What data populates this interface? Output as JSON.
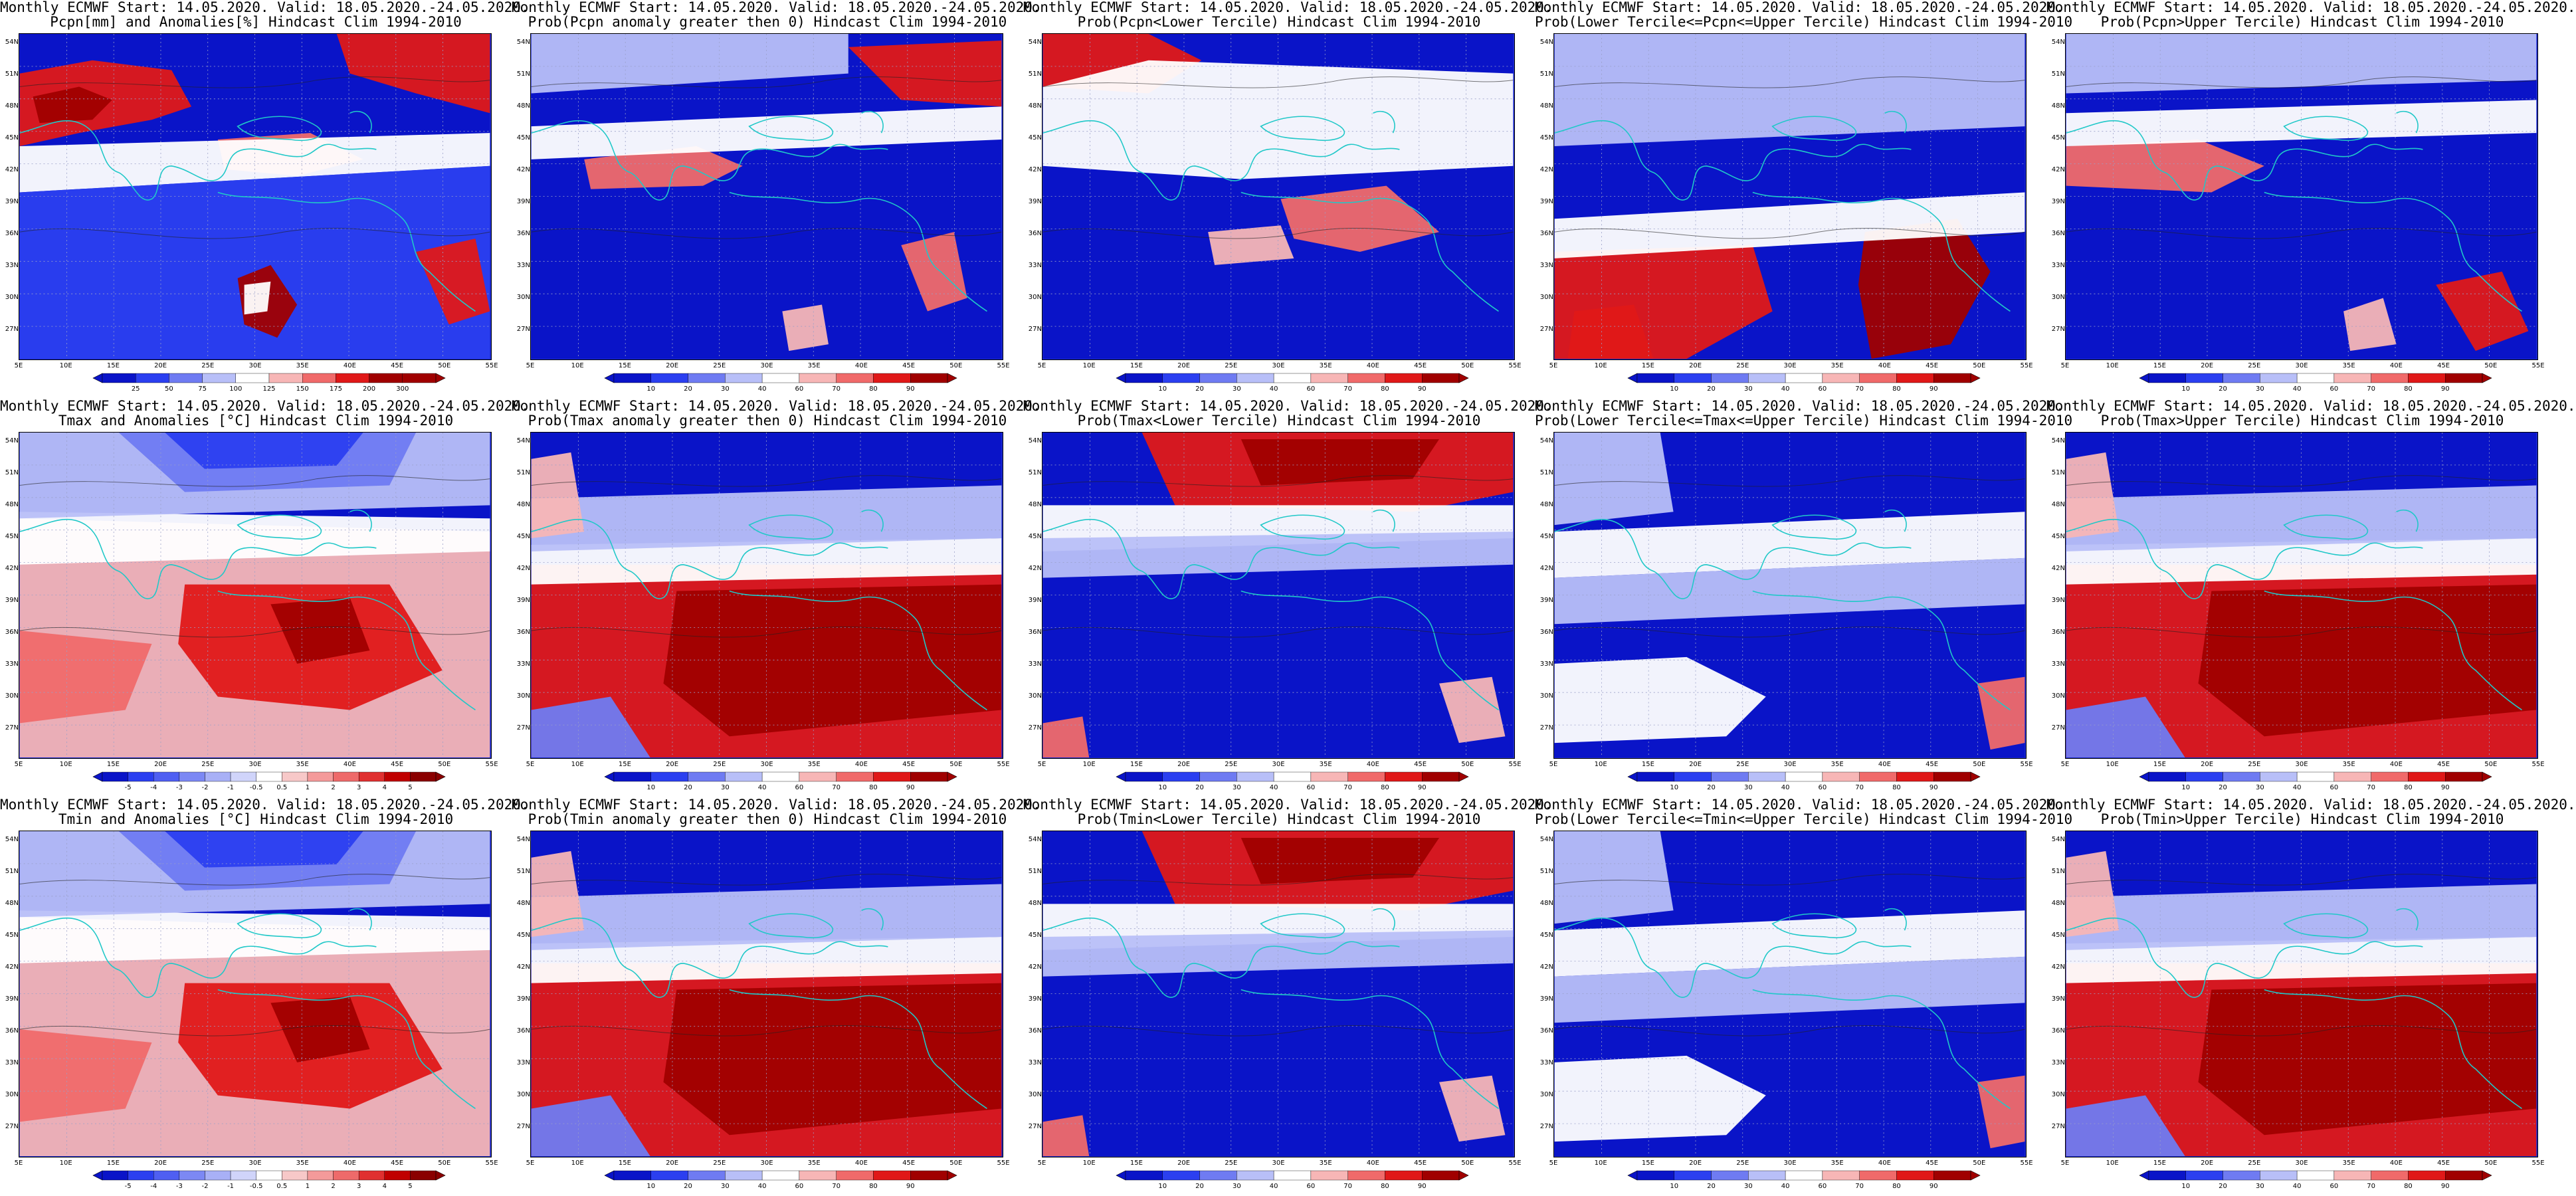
{
  "colors": {
    "deep_blue": "#0a14c8",
    "blue": "#2b3ff0",
    "mid_blue": "#6f7bf2",
    "light_blue": "#b8bff8",
    "white": "#ffffff",
    "light_red": "#f7b6b6",
    "mid_red": "#f06a6a",
    "red": "#e01818",
    "dark_red": "#a00000",
    "coast": "#20c8c8",
    "grid": "#9aa0c8"
  },
  "lat_labels": [
    "54N",
    "51N",
    "48N",
    "45N",
    "42N",
    "39N",
    "36N",
    "33N",
    "30N",
    "27N"
  ],
  "lon_labels": [
    "5E",
    "10E",
    "15E",
    "20E",
    "25E",
    "30E",
    "35E",
    "40E",
    "45E",
    "50E",
    "55E"
  ],
  "panels": [
    {
      "id": "p1",
      "title1": "Monthly ECMWF Start: 14.05.2020. Valid: 18.05.2020.-24.05.2020.",
      "title2": "Pcpn[mm] and Anomalies[%] Hindcast Clim 1994-2010",
      "ticks": [
        "25",
        "50",
        "75",
        "100",
        "125",
        "150",
        "175",
        "200",
        "300"
      ],
      "pattern": "pcpn_anom"
    },
    {
      "id": "p2",
      "title1": "Monthly ECMWF Start: 14.05.2020. Valid: 18.05.2020.-24.05.2020.",
      "title2": "Prob(Pcpn anomaly greater then 0) Hindcast Clim 1994-2010",
      "ticks": [
        "10",
        "20",
        "30",
        "40",
        "60",
        "70",
        "80",
        "90"
      ],
      "pattern": "pcpn_gt0"
    },
    {
      "id": "p3",
      "title1": "Monthly ECMWF Start: 14.05.2020. Valid: 18.05.2020.-24.05.2020.",
      "title2": "Prob(Pcpn<Lower Tercile) Hindcast Clim 1994-2010",
      "ticks": [
        "10",
        "20",
        "30",
        "40",
        "60",
        "70",
        "80",
        "90"
      ],
      "pattern": "pcpn_lower"
    },
    {
      "id": "p4",
      "title1": "Monthly ECMWF Start: 14.05.2020. Valid: 18.05.2020.-24.05.2020.",
      "title2": "Prob(Lower Tercile<=Pcpn<=Upper Tercile) Hindcast Clim 1994-2010",
      "ticks": [
        "10",
        "20",
        "30",
        "40",
        "60",
        "70",
        "80",
        "90"
      ],
      "pattern": "pcpn_middle"
    },
    {
      "id": "p5",
      "title1": "Monthly ECMWF Start: 14.05.2020. Valid: 18.05.2020.-24.05.2020.",
      "title2": "Prob(Pcpn>Upper Tercile) Hindcast Clim 1994-2010",
      "ticks": [
        "10",
        "20",
        "30",
        "40",
        "60",
        "70",
        "80",
        "90"
      ],
      "pattern": "pcpn_upper"
    },
    {
      "id": "p6",
      "title1": "Monthly ECMWF Start: 14.05.2020. Valid: 18.05.2020.-24.05.2020.",
      "title2": "Tmax and Anomalies [°C] Hindcast Clim 1994-2010",
      "ticks": [
        "-5",
        "-4",
        "-3",
        "-2",
        "-1",
        "-0.5",
        "0.5",
        "1",
        "2",
        "3",
        "4",
        "5"
      ],
      "pattern": "t_anom"
    },
    {
      "id": "p7",
      "title1": "Monthly ECMWF Start: 14.05.2020. Valid: 18.05.2020.-24.05.2020.",
      "title2": "Prob(Tmax anomaly greater then 0) Hindcast Clim 1994-2010",
      "ticks": [
        "10",
        "20",
        "30",
        "40",
        "60",
        "70",
        "80",
        "90"
      ],
      "pattern": "t_gt0"
    },
    {
      "id": "p8",
      "title1": "Monthly ECMWF Start: 14.05.2020. Valid: 18.05.2020.-24.05.2020.",
      "title2": "Prob(Tmax<Lower Tercile) Hindcast Clim 1994-2010",
      "ticks": [
        "10",
        "20",
        "30",
        "40",
        "60",
        "70",
        "80",
        "90"
      ],
      "pattern": "t_lower"
    },
    {
      "id": "p9",
      "title1": "Monthly ECMWF Start: 14.05.2020. Valid: 18.05.2020.-24.05.2020.",
      "title2": "Prob(Lower Tercile<=Tmax<=Upper Tercile) Hindcast Clim 1994-2010",
      "ticks": [
        "10",
        "20",
        "30",
        "40",
        "60",
        "70",
        "80",
        "90"
      ],
      "pattern": "t_middle"
    },
    {
      "id": "p10",
      "title1": "Monthly ECMWF Start: 14.05.2020. Valid: 18.05.2020.-24.05.2020.",
      "title2": "Prob(Tmax>Upper Tercile) Hindcast Clim 1994-2010",
      "ticks": [
        "10",
        "20",
        "30",
        "40",
        "60",
        "70",
        "80",
        "90"
      ],
      "pattern": "t_gt0"
    },
    {
      "id": "p11",
      "title1": "Monthly ECMWF Start: 14.05.2020. Valid: 18.05.2020.-24.05.2020.",
      "title2": "Tmin and Anomalies [°C] Hindcast Clim 1994-2010",
      "ticks": [
        "-5",
        "-4",
        "-3",
        "-2",
        "-1",
        "-0.5",
        "0.5",
        "1",
        "2",
        "3",
        "4",
        "5"
      ],
      "pattern": "t_anom"
    },
    {
      "id": "p12",
      "title1": "Monthly ECMWF Start: 14.05.2020. Valid: 18.05.2020.-24.05.2020.",
      "title2": "Prob(Tmin anomaly greater then 0) Hindcast Clim 1994-2010",
      "ticks": [
        "10",
        "20",
        "30",
        "40",
        "60",
        "70",
        "80",
        "90"
      ],
      "pattern": "t_gt0"
    },
    {
      "id": "p13",
      "title1": "Monthly ECMWF Start: 14.05.2020. Valid: 18.05.2020.-24.05.2020.",
      "title2": "Prob(Tmin<Lower Tercile) Hindcast Clim 1994-2010",
      "ticks": [
        "10",
        "20",
        "30",
        "40",
        "60",
        "70",
        "80",
        "90"
      ],
      "pattern": "t_lower"
    },
    {
      "id": "p14",
      "title1": "Monthly ECMWF Start: 14.05.2020. Valid: 18.05.2020.-24.05.2020.",
      "title2": "Prob(Lower Tercile<=Tmin<=Upper Tercile) Hindcast Clim 1994-2010",
      "ticks": [
        "10",
        "20",
        "30",
        "40",
        "60",
        "70",
        "80",
        "90"
      ],
      "pattern": "t_middle"
    },
    {
      "id": "p15",
      "title1": "Monthly ECMWF Start: 14.05.2020. Valid: 18.05.2020.-24.05.2020.",
      "title2": "Prob(Tmin>Upper Tercile) Hindcast Clim 1994-2010",
      "ticks": [
        "10",
        "20",
        "30",
        "40",
        "60",
        "70",
        "80",
        "90"
      ],
      "pattern": "t_gt0"
    }
  ]
}
